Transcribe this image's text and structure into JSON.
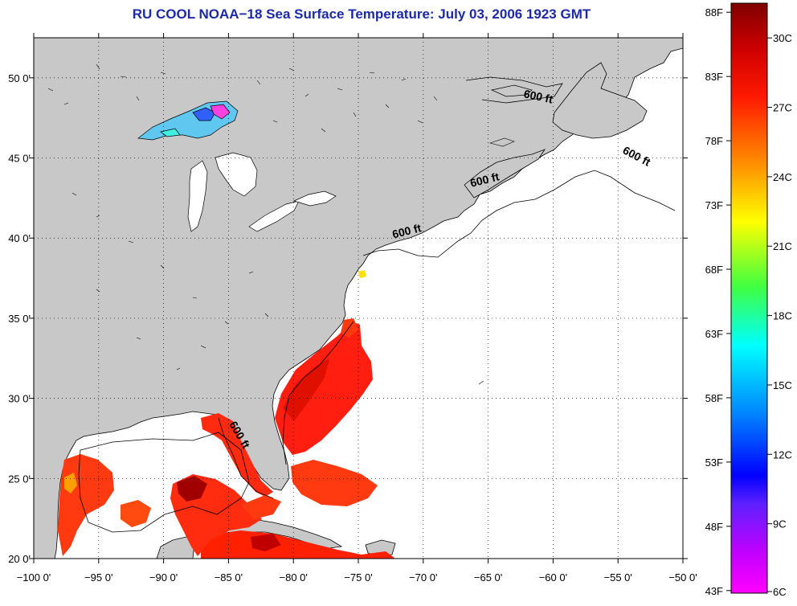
{
  "title": "RU COOL  NOAA−18  Sea Surface Temperature:  July 03, 2006 1923 GMT",
  "map": {
    "lon_range": [
      -100,
      -50
    ],
    "lat_range": [
      20,
      52.5
    ],
    "lon_ticks": [
      {
        "value": -100,
        "label": "−100 0'"
      },
      {
        "value": -95,
        "label": "−95 0'"
      },
      {
        "value": -90,
        "label": "−90 0'"
      },
      {
        "value": -85,
        "label": "−85 0'"
      },
      {
        "value": -80,
        "label": "−80 0'"
      },
      {
        "value": -75,
        "label": "−75 0'"
      },
      {
        "value": -70,
        "label": "−70 0'"
      },
      {
        "value": -65,
        "label": "−65 0'"
      },
      {
        "value": -60,
        "label": "−60 0'"
      },
      {
        "value": -55,
        "label": "−55 0'"
      },
      {
        "value": -50,
        "label": "−50 0'"
      }
    ],
    "lat_ticks": [
      {
        "value": 50,
        "label": "50 0'"
      },
      {
        "value": 45,
        "label": "45 0'"
      },
      {
        "value": 40,
        "label": "40 0'"
      },
      {
        "value": 35,
        "label": "35 0'"
      },
      {
        "value": 30,
        "label": "30 0'"
      },
      {
        "value": 25,
        "label": "25 0'"
      },
      {
        "value": 20,
        "label": "20 0'"
      }
    ],
    "grid": "dotted",
    "contour_labels": [
      {
        "text": "600 ft",
        "lon": -61.2,
        "lat": 48.6,
        "rotate": 12
      },
      {
        "text": "600 ft",
        "lon": -53.7,
        "lat": 44.9,
        "rotate": 28
      },
      {
        "text": "600 ft",
        "lon": -65.2,
        "lat": 43.4,
        "rotate": -14
      },
      {
        "text": "600 ft",
        "lon": -71.2,
        "lat": 40.2,
        "rotate": -14
      },
      {
        "text": "600 ft",
        "lon": -84.4,
        "lat": 27.6,
        "rotate": 60
      }
    ],
    "colors": {
      "land": "#c8c8c8",
      "ocean_no_data": "#ffffff",
      "coast": "#000000",
      "grid": "#000000"
    }
  },
  "colorbar": {
    "fahrenheit": [
      "88F",
      "83F",
      "78F",
      "73F",
      "68F",
      "63F",
      "58F",
      "53F",
      "48F",
      "43F"
    ],
    "celsius": [
      "30C",
      "27C",
      "24C",
      "21C",
      "18C",
      "15C",
      "12C",
      "9C",
      "6C"
    ],
    "f_values": [
      88,
      83,
      78,
      73,
      68,
      63,
      58,
      53,
      48,
      43
    ],
    "c_values": [
      30,
      27,
      24,
      21,
      18,
      15,
      12,
      9,
      6
    ],
    "c_range": [
      6,
      31.5
    ],
    "gradient": [
      "#800000",
      "#ff0000",
      "#ff8000",
      "#ffff00",
      "#40ff40",
      "#00ffff",
      "#0080ff",
      "#0000ff",
      "#8000ff",
      "#ff00ff"
    ]
  }
}
